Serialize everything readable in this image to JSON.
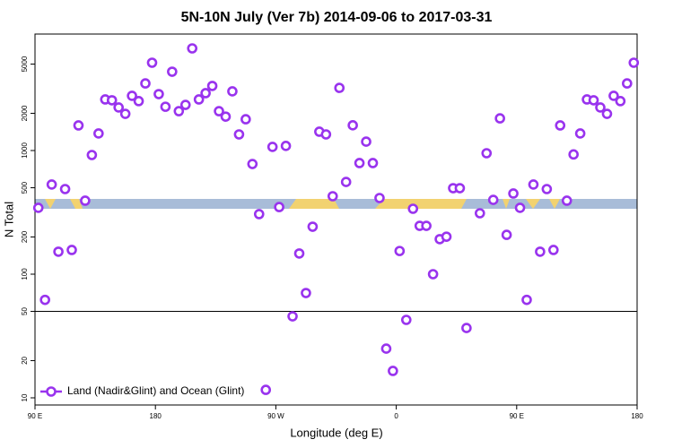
{
  "chart_data": {
    "type": "scatter",
    "title": "5N-10N July (Ver 7b)   2014-09-06 to 2017-03-31",
    "x_label": "Longitude (deg E)",
    "y_label": "N Total",
    "xlim": [
      90,
      540
    ],
    "xticks": [
      {
        "value": 90,
        "label": "90 E"
      },
      180,
      {
        "value": 270,
        "label": "90 W"
      },
      {
        "value": 360,
        "label": "0"
      },
      {
        "value": 450,
        "label": "90 E"
      },
      {
        "value": 540,
        "label": "180"
      }
    ],
    "ylim": [
      8.75,
      8750
    ],
    "yticks": [
      10,
      20,
      50,
      100,
      200,
      500,
      1000,
      2000,
      5000
    ],
    "log_y": true,
    "reference_line": 50,
    "legend": "bottom-left",
    "series": [
      {
        "name": "Land (Nadir&Glint) and Ocean (Glint)",
        "color": "#9933ee",
        "x": [
          92.5,
          97.5,
          102.5,
          107.5,
          112.5,
          117.5,
          122.5,
          127.5,
          132.5,
          137.5,
          142.5,
          147.5,
          152.5,
          157.5,
          162.5,
          167.5,
          172.5,
          177.5,
          182.5,
          187.5,
          192.5,
          197.5,
          202.5,
          207.5,
          212.5,
          217.5,
          222.5,
          227.5,
          232.5,
          237.5,
          242.5,
          247.5,
          252.5,
          257.5,
          262.5,
          267.5,
          272.5,
          277.5,
          282.5,
          287.5,
          292.5,
          297.5,
          302.5,
          307.5,
          312.5,
          317.5,
          322.5,
          327.5,
          332.5,
          337.5,
          342.5,
          347.5,
          352.5,
          357.5,
          362.5,
          367.5,
          372.5,
          377.5,
          382.5,
          387.5,
          392.5,
          397.5,
          402.5,
          407.5,
          412.5,
          422.5,
          427.5,
          432.5,
          437.5,
          442.5,
          447.5,
          452.5,
          457.5,
          462.5,
          467.5,
          472.5,
          477.5,
          482.5,
          487.5,
          492.5,
          497.5,
          502.5,
          507.5,
          512.5,
          517.5,
          522.5,
          527.5,
          532.5,
          537.5
        ],
        "values": [
          344,
          62,
          531,
          152,
          488,
          157,
          1596,
          393,
          920,
          1374,
          2590,
          2550,
          2230,
          1980,
          2770,
          2510,
          3490,
          5130,
          2860,
          2260,
          4340,
          2080,
          2340,
          6700,
          2590,
          2910,
          3330,
          2080,
          1880,
          3010,
          1350,
          1790,
          778,
          306,
          11.6,
          1070,
          349,
          1090,
          45.6,
          147,
          70.4,
          242,
          1420,
          1350,
          427,
          3210,
          557,
          1600,
          792,
          1180,
          792,
          413,
          25,
          16.5,
          154,
          42.7,
          338,
          246,
          246,
          100,
          192,
          201,
          496,
          496,
          36.7,
          311,
          951,
          399,
          1820,
          208,
          449,
          344,
          62,
          531,
          152,
          488,
          157,
          1596,
          393,
          930,
          1374,
          2590,
          2550,
          2230,
          1980,
          2770,
          2510,
          3490,
          5130
        ]
      }
    ]
  }
}
